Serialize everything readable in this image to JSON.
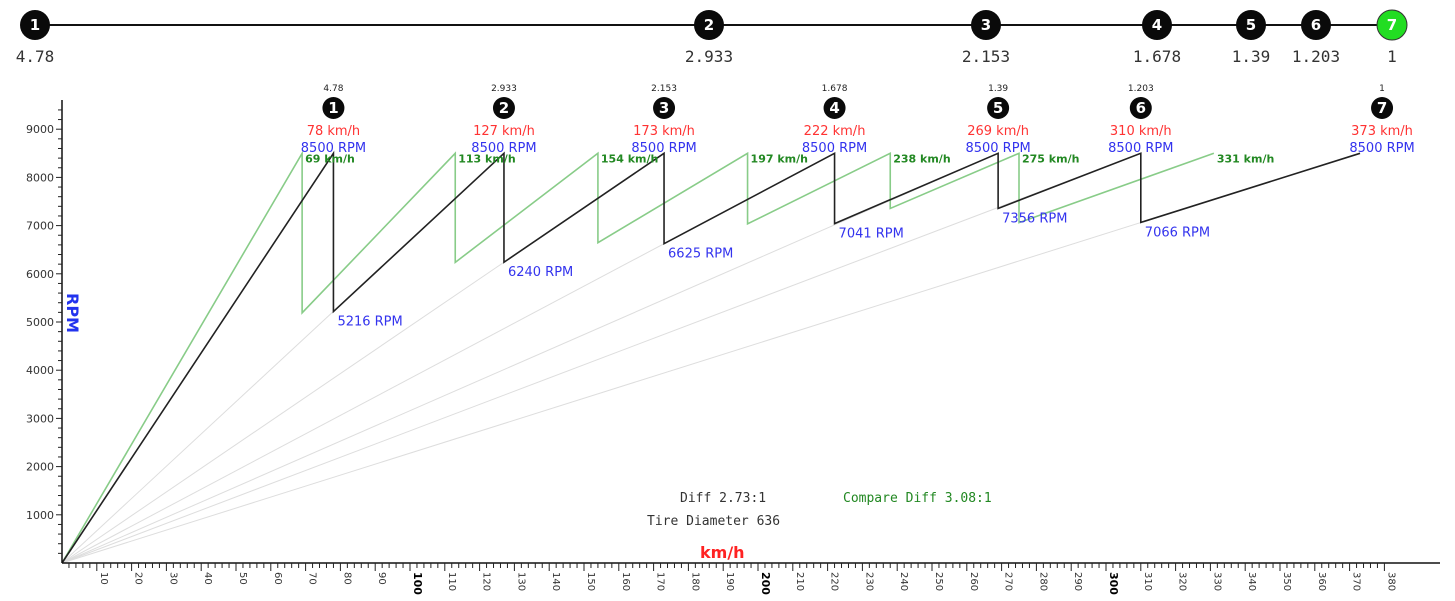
{
  "chart_data": {
    "type": "line",
    "xlabel": "km/h",
    "ylabel": "RPM",
    "xlim": [
      0,
      380
    ],
    "ylim": [
      0,
      9500
    ],
    "y_ticks": [
      1000,
      2000,
      3000,
      4000,
      5000,
      6000,
      7000,
      8000,
      9000
    ],
    "x_ticks": [
      "10",
      "20",
      "30",
      "40",
      "50",
      "60",
      "70",
      "80",
      "90",
      "100",
      "110",
      "120",
      "130",
      "140",
      "150",
      "160",
      "170",
      "180",
      "190",
      "200",
      "210",
      "220",
      "230",
      "240",
      "250",
      "260",
      "270",
      "280",
      "290",
      "300",
      "310",
      "320",
      "330",
      "340",
      "350",
      "360",
      "370",
      "380"
    ],
    "top_selector": {
      "gears": [
        "1",
        "2",
        "3",
        "4",
        "5",
        "6",
        "7"
      ],
      "ratio_labels": [
        "4.78",
        "2.933",
        "2.153",
        "1.678",
        "1.39",
        "1.203",
        "1"
      ],
      "selected": "7"
    },
    "gears": [
      {
        "gear": "1",
        "ratio": "4.78",
        "top_speed_label": "78 km/h",
        "top_rpm_label": "8500 RPM",
        "compare_speed_label": "69 km/h",
        "drop_rpm_label": "5216 RPM",
        "top_speed": 78,
        "compare_speed": 69,
        "drop_rpm": 5216
      },
      {
        "gear": "2",
        "ratio": "2.933",
        "top_speed_label": "127 km/h",
        "top_rpm_label": "8500 RPM",
        "compare_speed_label": "113 km/h",
        "drop_rpm_label": "6240 RPM",
        "top_speed": 127,
        "compare_speed": 113,
        "drop_rpm": 6240
      },
      {
        "gear": "3",
        "ratio": "2.153",
        "top_speed_label": "173 km/h",
        "top_rpm_label": "8500 RPM",
        "compare_speed_label": "154 km/h",
        "drop_rpm_label": "6625 RPM",
        "top_speed": 173,
        "compare_speed": 154,
        "drop_rpm": 6625
      },
      {
        "gear": "4",
        "ratio": "1.678",
        "top_speed_label": "222 km/h",
        "top_rpm_label": "8500 RPM",
        "compare_speed_label": "197 km/h",
        "drop_rpm_label": "7041 RPM",
        "top_speed": 222,
        "compare_speed": 197,
        "drop_rpm": 7041
      },
      {
        "gear": "5",
        "ratio": "1.39",
        "top_speed_label": "269 km/h",
        "top_rpm_label": "8500 RPM",
        "compare_speed_label": "238 km/h",
        "drop_rpm_label": "7356 RPM",
        "top_speed": 269,
        "compare_speed": 238,
        "drop_rpm": 7356
      },
      {
        "gear": "6",
        "ratio": "1.203",
        "top_speed_label": "310 km/h",
        "top_rpm_label": "8500 RPM",
        "compare_speed_label": "275 km/h",
        "drop_rpm_label": "7066 RPM",
        "top_speed": 310,
        "compare_speed": 275,
        "drop_rpm": 7066
      },
      {
        "gear": "7",
        "ratio": "1",
        "top_speed_label": "373 km/h",
        "top_rpm_label": "8500 RPM",
        "compare_speed_label": "331 km/h",
        "drop_rpm_label": "",
        "top_speed": 373,
        "compare_speed": 331,
        "drop_rpm": null
      }
    ],
    "max_rpm": 8500,
    "info": {
      "diff": "Diff 2.73:1",
      "compare_diff": "Compare Diff 3.08:1",
      "tire": "Tire Diameter 636"
    },
    "colors": {
      "main": "#222222",
      "compare": "#88cc88",
      "guide": "#dddddd",
      "speed": "#ff3333",
      "rpm": "#3333ee",
      "selected_gear": "#22dd22"
    }
  }
}
